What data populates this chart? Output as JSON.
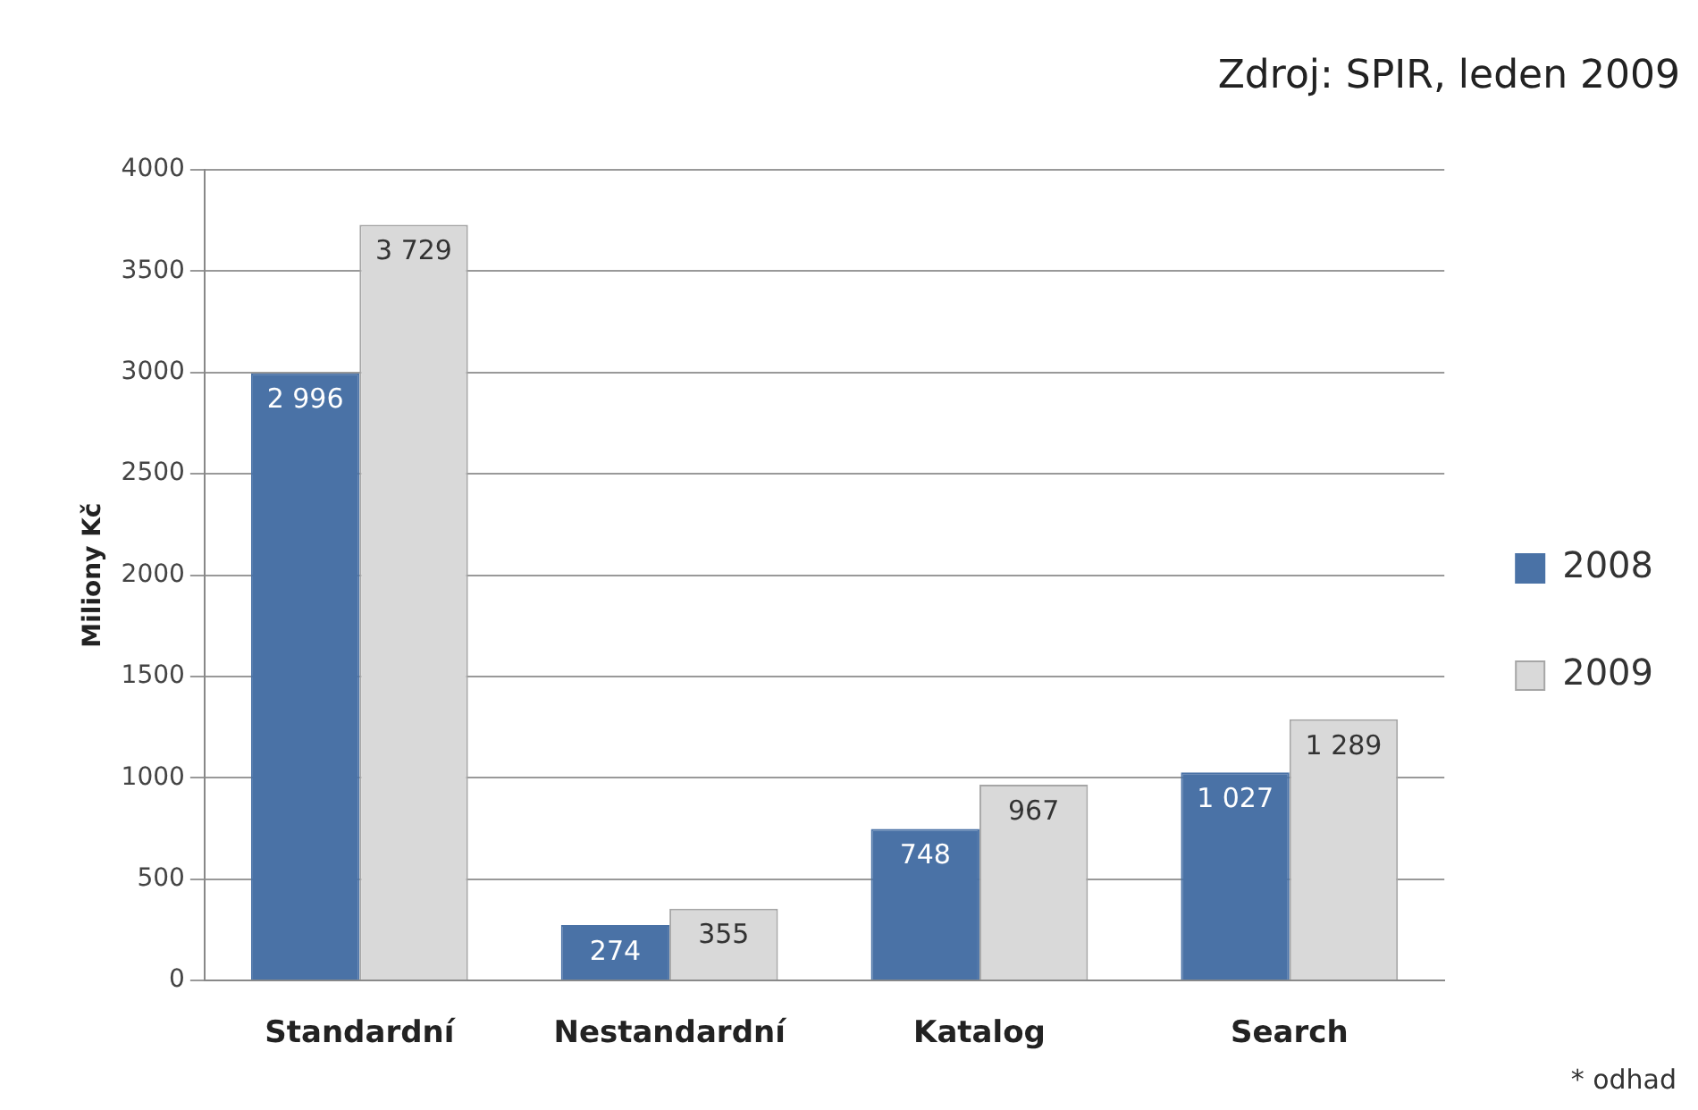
{
  "chart_data": {
    "type": "bar",
    "ylabel": "Miliony Kč",
    "categories": [
      "Standardní",
      "Nestandardní",
      "Katalog",
      "Search"
    ],
    "series": [
      {
        "name": "2008",
        "color": "#4a72a6",
        "values": [
          2996,
          274,
          748,
          1027
        ],
        "value_labels": [
          "2 996",
          "274",
          "748",
          "1 027"
        ]
      },
      {
        "name": "2009",
        "color": "#d9d9d9",
        "values": [
          3729,
          355,
          967,
          1289
        ],
        "value_labels": [
          "3 729",
          "355",
          "967",
          "1 289"
        ]
      }
    ],
    "ylim": [
      0,
      4000
    ],
    "yticks": [
      0,
      500,
      1000,
      1500,
      2000,
      2500,
      3000,
      3500,
      4000
    ],
    "grid": "y",
    "legend": "right",
    "annotations": [
      "Zdroj: SPIR, leden 2009",
      "* odhad"
    ]
  }
}
